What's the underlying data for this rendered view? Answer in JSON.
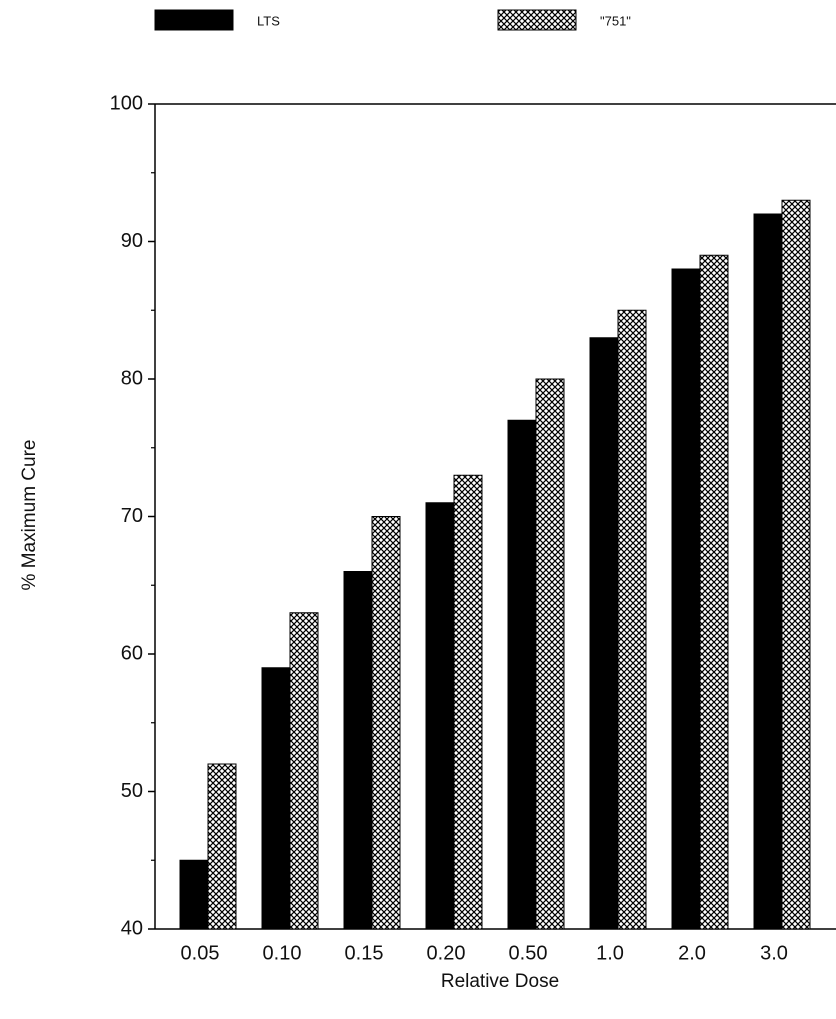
{
  "chart_data": {
    "type": "bar",
    "x_label": "Relative Dose",
    "y_label": "% Maximum Cure",
    "categories": [
      "0.05",
      "0.10",
      "0.15",
      "0.20",
      "0.50",
      "1.0",
      "2.0",
      "3.0"
    ],
    "series": [
      {
        "name": "LTS",
        "color": "#000000",
        "values": [
          45,
          59,
          66,
          71,
          77,
          83,
          88,
          92
        ]
      },
      {
        "name": "\"751\"",
        "color": "#000000",
        "hatch": "crosshatch",
        "values": [
          52,
          63,
          70,
          73,
          80,
          85,
          89,
          93
        ]
      }
    ],
    "ylim": [
      40,
      100
    ],
    "yticks": [
      40,
      50,
      60,
      70,
      80,
      90,
      100
    ],
    "yminorticks": [
      45,
      55,
      65,
      75,
      85,
      95
    ],
    "legend": "top"
  }
}
